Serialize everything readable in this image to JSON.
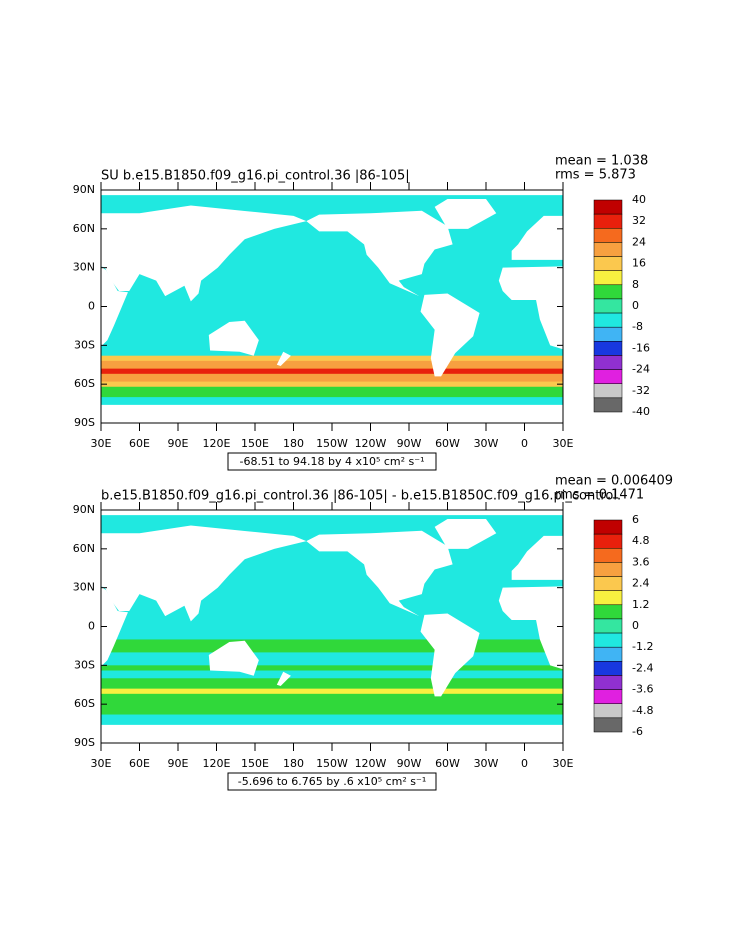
{
  "panels": [
    {
      "title": "SU  b.e15.B1850.f09_g16.pi_control.36  |86-105|",
      "mean": "mean = 1.038",
      "rms": "rms = 5.873",
      "lat_labels": [
        "90N",
        "60N",
        "30N",
        "0",
        "30S",
        "60S",
        "90S"
      ],
      "lon_labels": [
        "30E",
        "60E",
        "90E",
        "120E",
        "150E",
        "180",
        "150W",
        "120W",
        "90W",
        "60W",
        "30W",
        "0",
        "30E"
      ],
      "colorbar": {
        "labels": [
          "40",
          "32",
          "24",
          "16",
          "8",
          "0",
          "-8",
          "-16",
          "-24",
          "-32",
          "-40"
        ],
        "colors": [
          "#c00000",
          "#e8200c",
          "#f56a1e",
          "#f7a040",
          "#fbc84e",
          "#f8f040",
          "#30d83a",
          "#34e6a0",
          "#20e8e0",
          "#40b4f4",
          "#1838e0",
          "#9030d0",
          "#e020e0",
          "#c8c8c8",
          "#686868"
        ]
      },
      "range": "-68.51 to 94.18 by 4 x10⁵ cm² s⁻¹"
    },
    {
      "title": "b.e15.B1850.f09_g16.pi_control.36  |86-105|  -  b.e15.B1850C.f09_g16.pi_control.",
      "mean": "mean = 0.006409",
      "rms": "rms = 0.1471",
      "lat_labels": [
        "90N",
        "60N",
        "30N",
        "0",
        "30S",
        "60S",
        "90S"
      ],
      "lon_labels": [
        "30E",
        "60E",
        "90E",
        "120E",
        "150E",
        "180",
        "150W",
        "120W",
        "90W",
        "60W",
        "30W",
        "0",
        "30E"
      ],
      "colorbar": {
        "labels": [
          "6",
          "4.8",
          "3.6",
          "2.4",
          "1.2",
          "0",
          "-1.2",
          "-2.4",
          "-3.6",
          "-4.8",
          "-6"
        ],
        "colors": [
          "#c00000",
          "#e8200c",
          "#f56a1e",
          "#f7a040",
          "#fbc84e",
          "#f8f040",
          "#30d83a",
          "#34e6a0",
          "#20e8e0",
          "#40b4f4",
          "#1838e0",
          "#9030d0",
          "#e020e0",
          "#c8c8c8",
          "#686868"
        ]
      },
      "range": "-5.696 to 6.765 by .6 x10⁵ cm² s⁻¹"
    }
  ]
}
